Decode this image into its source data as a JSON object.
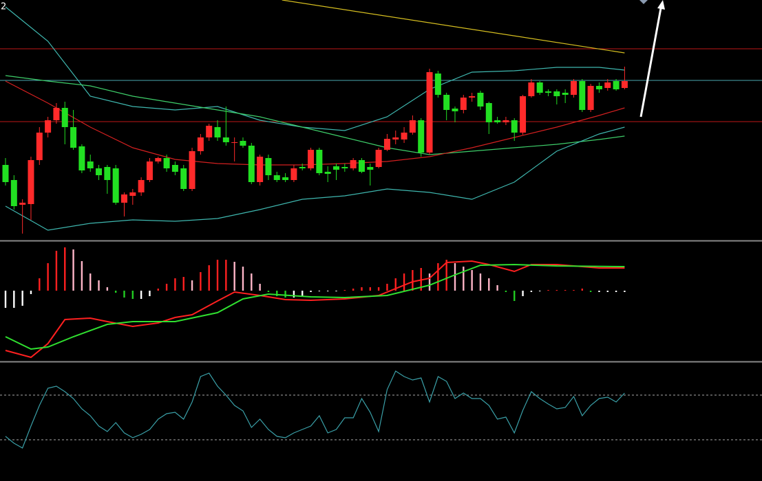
{
  "chart_data": [
    {
      "type": "candlestick",
      "title": "2",
      "xlim": [
        -0.65,
        89.2
      ],
      "ylim": [
        0,
        350
      ],
      "up_color": "#ff2a2a",
      "down_color": "#22e022",
      "open": [
        110,
        88,
        52,
        53,
        117,
        157,
        175,
        193,
        165,
        137,
        115,
        105,
        107,
        105,
        55,
        65,
        70,
        88,
        115,
        120,
        110,
        105,
        75,
        130,
        150,
        165,
        150,
        142,
        145,
        138,
        85,
        120,
        95,
        92,
        88,
        107,
        105,
        132,
        100,
        108,
        107,
        105,
        117,
        107,
        107,
        132,
        147,
        147,
        157,
        175,
        128,
        243,
        212,
        192,
        190,
        208,
        215,
        200,
        175,
        172,
        175,
        157,
        210,
        230,
        217,
        217,
        215,
        212,
        232,
        190,
        225,
        222,
        232,
        222
      ],
      "close": [
        85,
        50,
        55,
        117,
        157,
        175,
        193,
        165,
        135,
        102,
        105,
        95,
        88,
        55,
        67,
        70,
        88,
        115,
        120,
        105,
        100,
        75,
        130,
        150,
        167,
        150,
        143,
        143,
        138,
        85,
        122,
        95,
        88,
        88,
        105,
        105,
        132,
        98,
        97,
        103,
        105,
        117,
        100,
        103,
        132,
        148,
        150,
        157,
        175,
        128,
        245,
        212,
        190,
        188,
        208,
        210,
        195,
        172,
        172,
        175,
        157,
        210,
        230,
        215,
        215,
        210,
        212,
        232,
        190,
        225,
        220,
        230,
        220,
        232
      ],
      "high": [
        120,
        95,
        60,
        122,
        165,
        180,
        200,
        202,
        190,
        140,
        125,
        110,
        110,
        110,
        70,
        75,
        92,
        120,
        122,
        125,
        115,
        110,
        135,
        155,
        170,
        175,
        195,
        150,
        150,
        142,
        125,
        125,
        100,
        98,
        110,
        112,
        135,
        135,
        108,
        112,
        112,
        120,
        120,
        112,
        135,
        155,
        160,
        165,
        182,
        178,
        250,
        247,
        215,
        195,
        212,
        215,
        218,
        202,
        180,
        180,
        178,
        212,
        235,
        232,
        220,
        220,
        220,
        235,
        235,
        228,
        230,
        235,
        235,
        253
      ],
      "low": [
        80,
        45,
        10,
        30,
        110,
        150,
        170,
        140,
        132,
        98,
        100,
        88,
        68,
        52,
        35,
        52,
        65,
        85,
        112,
        100,
        95,
        72,
        72,
        125,
        145,
        145,
        138,
        115,
        135,
        82,
        80,
        88,
        85,
        85,
        85,
        102,
        102,
        95,
        85,
        88,
        100,
        102,
        98,
        80,
        105,
        130,
        140,
        142,
        154,
        122,
        125,
        208,
        175,
        172,
        185,
        202,
        190,
        155,
        170,
        168,
        145,
        154,
        208,
        212,
        210,
        198,
        200,
        208,
        187,
        187,
        215,
        218,
        218,
        220
      ],
      "lines": [
        {
          "color": "#3fb8b0",
          "x": [
            0,
            5,
            10,
            15,
            20,
            25,
            30,
            35,
            40,
            45,
            50,
            55,
            60,
            65,
            70,
            73
          ],
          "values": [
            340,
            290,
            210,
            195,
            190,
            195,
            175,
            165,
            160,
            180,
            220,
            245,
            247,
            252,
            252,
            248
          ]
        },
        {
          "color": "#3ecf6a",
          "x": [
            0,
            5,
            10,
            15,
            20,
            25,
            30,
            35,
            40,
            45,
            50,
            55,
            60,
            65,
            70,
            73
          ],
          "values": [
            240,
            232,
            225,
            210,
            200,
            190,
            180,
            165,
            150,
            135,
            125,
            130,
            135,
            140,
            147,
            152
          ]
        },
        {
          "color": "#3fb8b0",
          "x": [
            0,
            5,
            10,
            15,
            20,
            25,
            30,
            35,
            40,
            45,
            50,
            55,
            60,
            65,
            70,
            73
          ],
          "values": [
            50,
            15,
            25,
            30,
            28,
            32,
            45,
            60,
            65,
            75,
            70,
            60,
            85,
            130,
            155,
            165
          ]
        },
        {
          "color": "#d42020",
          "x": [
            0,
            5,
            10,
            15,
            20,
            25,
            30,
            35,
            40,
            45,
            50,
            55,
            60,
            65,
            70,
            73
          ],
          "values": [
            232,
            200,
            165,
            135,
            118,
            112,
            110,
            110,
            112,
            115,
            122,
            135,
            150,
            165,
            182,
            193
          ]
        },
        {
          "color": "#d8c020",
          "x": [
            32.6,
            73
          ],
          "values": [
            350,
            273
          ]
        }
      ],
      "levels": [
        {
          "value": 279,
          "color": "#c01818"
        },
        {
          "value": 233,
          "color": "#4aa8b0"
        },
        {
          "value": 173,
          "color": "#c01818"
        }
      ]
    },
    {
      "type": "macd",
      "xlim": [
        -0.65,
        89.2
      ],
      "ylim": [
        -102,
        71
      ],
      "colors": {
        "up": "#ff2020",
        "up_fading": "#ffb6c8",
        "down": "#22cc22",
        "down_fading": "#ffffff"
      },
      "values": [
        -25,
        -25,
        -22,
        -5,
        18,
        40,
        58,
        63,
        60,
        43,
        25,
        15,
        5,
        -3,
        -10,
        -12,
        -12,
        -8,
        3,
        10,
        18,
        20,
        15,
        27,
        37,
        45,
        45,
        42,
        35,
        25,
        10,
        -2,
        -8,
        -10,
        -10,
        -8,
        -2,
        -1,
        -1,
        -1,
        1,
        3,
        5,
        5,
        5,
        10,
        18,
        25,
        30,
        33,
        25,
        40,
        45,
        40,
        35,
        30,
        25,
        18,
        8,
        -2,
        -15,
        -8,
        -2,
        -1,
        1,
        1,
        1,
        1,
        3,
        -2,
        -2,
        -2,
        -2,
        -2
      ],
      "lines": [
        {
          "color": "#ff2020",
          "x": [
            0,
            3,
            5,
            7,
            10,
            12,
            15,
            18,
            20,
            22,
            25,
            27,
            30,
            33,
            36,
            40,
            44,
            48,
            50,
            52,
            55,
            57,
            60,
            62,
            65,
            70,
            73
          ],
          "values": [
            -87,
            -97,
            -77,
            -42,
            -40,
            -45,
            -52,
            -47,
            -39,
            -35,
            -15,
            -2,
            -7,
            -13,
            -14,
            -12,
            -7,
            13,
            18,
            41,
            43,
            38,
            28,
            38,
            38,
            33,
            33
          ]
        },
        {
          "color": "#30e030",
          "x": [
            0,
            3,
            5,
            8,
            12,
            15,
            20,
            25,
            28,
            31,
            36,
            40,
            45,
            50,
            53,
            56,
            60,
            65,
            73
          ],
          "values": [
            -67,
            -85,
            -82,
            -67,
            -49,
            -45,
            -45,
            -32,
            -12,
            -5,
            -9,
            -10,
            -7,
            8,
            23,
            37,
            38,
            36,
            35
          ]
        }
      ]
    },
    {
      "type": "line",
      "xlim": [
        -0.65,
        89.2
      ],
      "ylim": [
        0,
        172
      ],
      "color": "#3aa0a8",
      "levels": [
        125,
        60
      ],
      "values": [
        65,
        55,
        48,
        80,
        110,
        135,
        138,
        130,
        120,
        105,
        95,
        80,
        72,
        85,
        70,
        63,
        68,
        75,
        90,
        98,
        100,
        90,
        115,
        152,
        157,
        138,
        125,
        110,
        102,
        78,
        90,
        75,
        65,
        63,
        70,
        75,
        80,
        95,
        70,
        75,
        92,
        92,
        120,
        100,
        72,
        133,
        160,
        152,
        147,
        150,
        115,
        152,
        145,
        120,
        128,
        120,
        120,
        110,
        90,
        93,
        70,
        103,
        130,
        120,
        112,
        105,
        107,
        123,
        95,
        110,
        120,
        122,
        115,
        128
      ]
    }
  ]
}
